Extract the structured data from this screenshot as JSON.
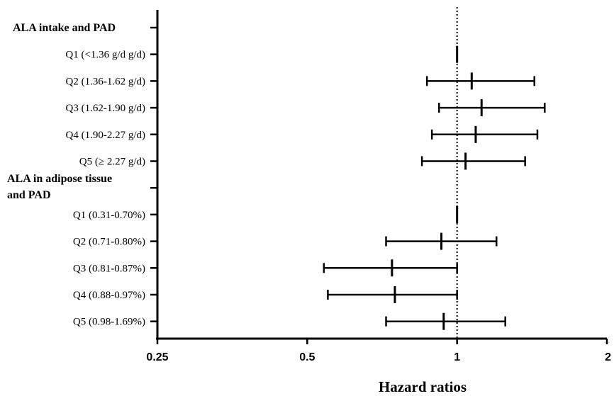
{
  "chart_data": {
    "type": "forest",
    "xlabel": "Hazard ratios",
    "x_scale": "log2",
    "xlim": [
      0.25,
      2
    ],
    "x_ticks": [
      {
        "value": 0.25,
        "label": "0.25"
      },
      {
        "value": 0.5,
        "label": "0.5"
      },
      {
        "value": 1,
        "label": "1"
      },
      {
        "value": 2,
        "label": "2"
      }
    ],
    "reference_line": 1,
    "rows": [
      {
        "label": "ALA intake and PAD",
        "header": true
      },
      {
        "label": "Q1 (<1.36 g/d g/d)",
        "hr": 1.0,
        "lo": 1.0,
        "hi": 1.0
      },
      {
        "label": "Q2 (1.36-1.62 g/d)",
        "hr": 1.07,
        "lo": 0.87,
        "hi": 1.43
      },
      {
        "label": "Q3 (1.62-1.90 g/d)",
        "hr": 1.12,
        "lo": 0.92,
        "hi": 1.5
      },
      {
        "label": "Q4 (1.90-2.27 g/d)",
        "hr": 1.09,
        "lo": 0.89,
        "hi": 1.45
      },
      {
        "label": "Q5 (≥ 2.27 g/d)",
        "hr": 1.04,
        "lo": 0.85,
        "hi": 1.37
      },
      {
        "label": "ALA in adipose tissue",
        "label2": "and PAD",
        "header": true
      },
      {
        "label": "Q1 (0.31-0.70%)",
        "hr": 1.0,
        "lo": 1.0,
        "hi": 1.0
      },
      {
        "label": "Q2 (0.71-0.80%)",
        "hr": 0.93,
        "lo": 0.72,
        "hi": 1.2
      },
      {
        "label": "Q3 (0.81-0.87%)",
        "hr": 0.74,
        "lo": 0.54,
        "hi": 1.0
      },
      {
        "label": "Q4 (0.88-0.97%)",
        "hr": 0.75,
        "lo": 0.55,
        "hi": 1.0
      },
      {
        "label": "Q5 (0.98-1.69%)",
        "hr": 0.94,
        "lo": 0.72,
        "hi": 1.25
      }
    ]
  }
}
